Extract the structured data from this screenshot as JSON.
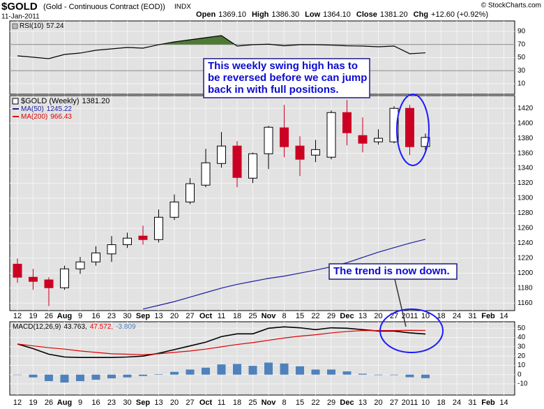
{
  "header": {
    "symbol": "$GOLD",
    "description": "(Gold - Continuous Contract (EOD))",
    "exchange": "INDX",
    "date": "11-Jan-2011",
    "quote": [
      {
        "label": "Open",
        "value": "1369.10"
      },
      {
        "label": "High",
        "value": "1386.30"
      },
      {
        "label": "Low",
        "value": "1364.10"
      },
      {
        "label": "Close",
        "value": "1381.20"
      },
      {
        "label": "Chg",
        "value": "+12.60 (+0.92%)"
      }
    ],
    "copyright": "© StockCharts.com"
  },
  "chart_data": [
    {
      "type": "line",
      "series": [
        {
          "name": "RSI(10)",
          "value_label": "57.24",
          "color": "#000000",
          "values": [
            52.7,
            50.5,
            48.4,
            54.8,
            56.9,
            61.2,
            63.3,
            65.5,
            64.4,
            69.7,
            74,
            77.2,
            80.4,
            83.6,
            67.6,
            69.7,
            70.5,
            68,
            69.7,
            69.7,
            69,
            68,
            67.6,
            66.5,
            67.6,
            55.9,
            57.24,
            null,
            null,
            null,
            null,
            null
          ]
        }
      ],
      "ylim": [
        -6,
        106
      ],
      "yticks": [
        10,
        30,
        50,
        70,
        90
      ],
      "reference_lines": [
        30,
        70
      ],
      "overbought_color": "#4f7a35"
    },
    {
      "type": "candlestick",
      "title": "$GOLD (Weekly)",
      "last_label": "1381.20",
      "categories": [
        "12",
        "19",
        "26",
        "Aug",
        "9",
        "16",
        "23",
        "30",
        "Sep",
        "13",
        "20",
        "27",
        "Oct",
        "11",
        "18",
        "25",
        "Nov",
        "8",
        "15",
        "22",
        "29",
        "Dec",
        "13",
        "20",
        "27",
        "2011",
        "10",
        "18",
        "24",
        "31",
        "Feb",
        "14"
      ],
      "open": [
        1212,
        1194.5,
        1191,
        1180.5,
        1205.7,
        1215,
        1225.7,
        1238,
        1249.5,
        1244.8,
        1274.6,
        1295,
        1317.5,
        1346.4,
        1369.7,
        1326.8,
        1359.4,
        1394,
        1369.7,
        1357.6,
        1354.8,
        1414.4,
        1383.7,
        1375.3,
        1375.3,
        1420,
        1369.1,
        null,
        null,
        null,
        null,
        null
      ],
      "high": [
        1219.6,
        1205.7,
        1194.5,
        1210,
        1221.5,
        1236,
        1249.5,
        1254,
        1263.4,
        1285,
        1305,
        1326.8,
        1366,
        1388.3,
        1376.2,
        1361,
        1396.7,
        1424.7,
        1382.7,
        1378,
        1417.2,
        1431.2,
        1407.9,
        1392,
        1422.8,
        1424.7,
        1386.3,
        null,
        null,
        null,
        null,
        null
      ],
      "low": [
        1187,
        1177.7,
        1156,
        1177.7,
        1199,
        1210,
        1215,
        1233.6,
        1238,
        1241,
        1271,
        1292,
        1314.7,
        1340.8,
        1314.7,
        1320.3,
        1339,
        1354.8,
        1329.6,
        1348.3,
        1352,
        1370.6,
        1361.3,
        1371.6,
        1373.4,
        1357.6,
        1364.1,
        null,
        null,
        null,
        null,
        null
      ],
      "close": [
        1194.5,
        1189,
        1180.5,
        1205.7,
        1215,
        1227,
        1238,
        1246.7,
        1244.8,
        1274.6,
        1295,
        1319.4,
        1347.3,
        1369.7,
        1327.7,
        1359.4,
        1394.8,
        1368.8,
        1352,
        1364.9,
        1414.4,
        1387.4,
        1373.4,
        1380,
        1420,
        1368.8,
        1381.2,
        null,
        null,
        null,
        null,
        null
      ],
      "up_color": "#ffffff",
      "down_color": "#cc0022",
      "overlays": [
        {
          "name": "MA(50)",
          "value_label": "1245.22",
          "color": "#1c1ca0",
          "values": [
            null,
            null,
            null,
            null,
            null,
            null,
            null,
            null,
            1152,
            1157,
            1162,
            1168,
            1174,
            1180,
            1185,
            1189,
            1193,
            1196,
            1200,
            1204,
            1208.5,
            1214,
            1221,
            1228,
            1234,
            1240,
            1245.22,
            null,
            null,
            null,
            null,
            null
          ]
        },
        {
          "name": "MA(200)",
          "value_label": "966.43",
          "color": "#e00000"
        }
      ],
      "ylim": [
        1150,
        1437
      ],
      "yticks": [
        1160,
        1180,
        1200,
        1220,
        1240,
        1260,
        1280,
        1300,
        1320,
        1340,
        1360,
        1380,
        1400,
        1420
      ],
      "grid": true,
      "annotations": [
        {
          "lines": [
            "This weekly swing high has to",
            "be reversed before we can jump",
            "back in with full positions."
          ]
        },
        {
          "lines": [
            "The trend is now down."
          ]
        }
      ]
    },
    {
      "type": "macd",
      "title": "MACD(12,26,9)",
      "series": [
        {
          "value_label": "43.763,",
          "color": "#000000",
          "style": "line",
          "values": [
            33,
            28,
            22,
            19,
            18.5,
            18.5,
            18.5,
            19,
            20,
            23,
            27,
            31,
            35,
            41,
            44,
            44,
            50,
            51.5,
            50.5,
            48.5,
            50.5,
            50,
            48.5,
            47,
            47,
            45,
            43.763,
            null,
            null,
            null,
            null,
            null
          ]
        },
        {
          "value_label": "47.572,",
          "color": "#e00000",
          "style": "line",
          "values": [
            33,
            31,
            29,
            27.5,
            25.5,
            24,
            22.5,
            22,
            21.5,
            22.5,
            24,
            25.5,
            27.5,
            30,
            32.5,
            34.5,
            37,
            39.5,
            41.5,
            43,
            45,
            46.5,
            47.5,
            47.5,
            47.5,
            47.8,
            47.572,
            null,
            null,
            null,
            null,
            null
          ]
        },
        {
          "value_label": "-3.809",
          "color": "#4f81bd",
          "style": "histogram",
          "values": [
            0,
            -3,
            -7,
            -8.5,
            -7,
            -5.5,
            -4,
            -3,
            -1.5,
            0.5,
            3,
            5.5,
            7.5,
            11,
            11.5,
            9.5,
            13,
            12,
            9,
            5.5,
            5.5,
            3.5,
            1,
            -0.5,
            -0.5,
            -2.8,
            -3.809,
            null,
            null,
            null,
            null,
            null
          ]
        }
      ],
      "ylim": [
        -22,
        57
      ],
      "yticks": [
        -10,
        0,
        10,
        20,
        30,
        40,
        50
      ]
    }
  ]
}
